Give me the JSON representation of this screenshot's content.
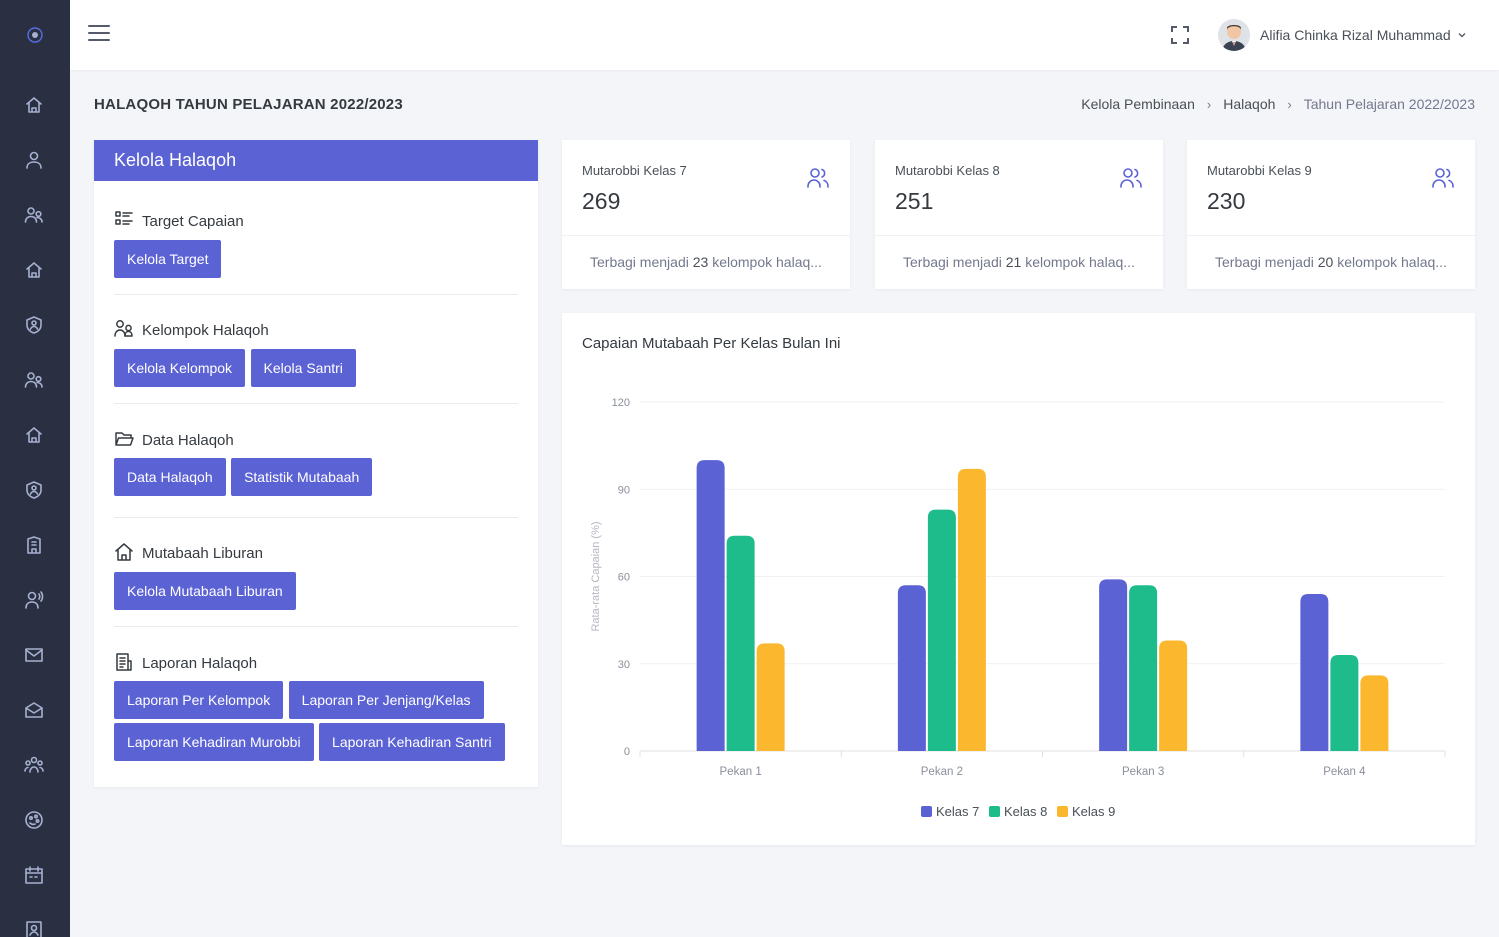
{
  "topbar": {
    "user_name": "Alifia Chinka Rizal Muhammad"
  },
  "page": {
    "title": "HALAQOH TAHUN PELAJARAN 2022/2023",
    "breadcrumb": [
      "Kelola Pembinaan",
      "Halaqoh",
      "Tahun Pelajaran 2022/2023"
    ]
  },
  "panel": {
    "title": "Kelola Halaqoh",
    "sections": [
      {
        "title": "Target Capaian",
        "icon": "list-icon",
        "buttons": [
          "Kelola Target"
        ]
      },
      {
        "title": "Kelompok Halaqoh",
        "icon": "users-icon",
        "buttons": [
          "Kelola Kelompok",
          "Kelola Santri"
        ]
      },
      {
        "title": "Data Halaqoh",
        "icon": "folder-icon",
        "buttons": [
          "Data Halaqoh",
          "Statistik Mutabaah"
        ]
      },
      {
        "title": "Mutabaah Liburan",
        "icon": "home-icon",
        "buttons": [
          "Kelola Mutabaah Liburan"
        ]
      },
      {
        "title": "Laporan Halaqoh",
        "icon": "report-icon",
        "buttons": [
          "Laporan Per Kelompok",
          "Laporan Per Jenjang/Kelas",
          "Laporan Kehadiran Murobbi",
          "Laporan Kehadiran Santri"
        ]
      }
    ]
  },
  "cards": [
    {
      "label": "Mutarobbi Kelas 7",
      "value": "269",
      "foot_prefix": "Terbagi menjadi ",
      "foot_num": "23",
      "foot_suffix": " kelompok halaq..."
    },
    {
      "label": "Mutarobbi Kelas 8",
      "value": "251",
      "foot_prefix": "Terbagi menjadi ",
      "foot_num": "21",
      "foot_suffix": " kelompok halaq..."
    },
    {
      "label": "Mutarobbi Kelas 9",
      "value": "230",
      "foot_prefix": "Terbagi menjadi ",
      "foot_num": "20",
      "foot_suffix": " kelompok halaq..."
    }
  ],
  "chart_title": "Capaian Mutabaah Per Kelas Bulan Ini",
  "chart_data": {
    "type": "bar",
    "title": "Capaian Mutabaah Per Kelas Bulan Ini",
    "categories": [
      "Pekan 1",
      "Pekan 2",
      "Pekan 3",
      "Pekan 4"
    ],
    "series": [
      {
        "name": "Kelas 7",
        "color": "#5b62d4",
        "values": [
          100,
          57,
          59,
          54
        ]
      },
      {
        "name": "Kelas 8",
        "color": "#1ebc8a",
        "values": [
          74,
          83,
          57,
          33
        ]
      },
      {
        "name": "Kelas 9",
        "color": "#fbb72d",
        "values": [
          37,
          97,
          38,
          26
        ]
      }
    ],
    "xlabel": "",
    "ylabel": "Rata-rata Capaian (%)",
    "ylim": [
      0,
      120
    ],
    "yticks": [
      0,
      30,
      60,
      90,
      120
    ],
    "legend": "bottom-center",
    "grid": true
  }
}
